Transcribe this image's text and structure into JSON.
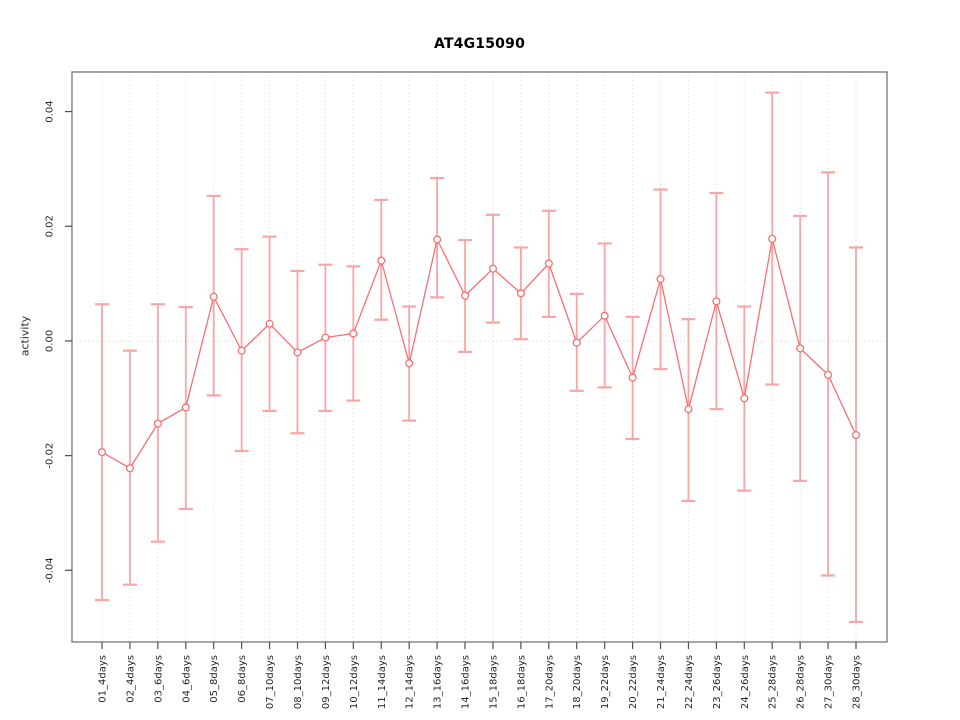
{
  "chart_data": {
    "type": "line",
    "title": "AT4G15090",
    "xlabel": "",
    "ylabel": "activity",
    "ylim": [
      -0.0525,
      0.0469
    ],
    "yticks": [
      -0.04,
      -0.02,
      0.0,
      0.02,
      0.04
    ],
    "ytick_labels": [
      "-0.04",
      "-0.02",
      "0.00",
      "0.02",
      "0.04"
    ],
    "grid": "vertical dotted gridline at each category; dotted horizontal line at y=0",
    "legend": "none",
    "categories": [
      "01_4days",
      "02_4days",
      "03_6days",
      "04_6days",
      "05_8days",
      "06_8days",
      "07_10days",
      "08_10days",
      "09_12days",
      "10_12days",
      "11_14days",
      "12_14days",
      "13_16days",
      "14_16days",
      "15_18days",
      "16_18days",
      "17_20days",
      "18_20days",
      "19_22days",
      "20_22days",
      "21_24days",
      "22_24days",
      "23_26days",
      "24_26days",
      "25_28days",
      "26_28days",
      "27_30days",
      "28_30days"
    ],
    "series": [
      {
        "name": "activity",
        "marker": "open-circle",
        "values": [
          -0.0194,
          -0.0222,
          -0.0144,
          -0.0116,
          0.0077,
          -0.0017,
          0.003,
          -0.002,
          0.0006,
          0.0013,
          0.014,
          -0.0039,
          0.0177,
          0.0079,
          0.0126,
          0.0083,
          0.0135,
          -0.0003,
          0.0044,
          -0.0064,
          0.0108,
          -0.0119,
          0.0069,
          -0.01,
          0.0178,
          -0.0013,
          -0.0059,
          -0.0164
        ],
        "upper": [
          0.0064,
          -0.0017,
          0.0064,
          0.0059,
          0.0253,
          0.016,
          0.0182,
          0.0122,
          0.0133,
          0.013,
          0.0246,
          0.006,
          0.0284,
          0.0176,
          0.022,
          0.0163,
          0.0227,
          0.0082,
          0.017,
          0.0042,
          0.0264,
          0.0038,
          0.0258,
          0.006,
          0.0433,
          0.0218,
          0.0294,
          0.0163
        ],
        "lower": [
          -0.0452,
          -0.0425,
          -0.035,
          -0.0293,
          -0.0095,
          -0.0192,
          -0.0122,
          -0.0161,
          -0.0122,
          -0.0104,
          0.0037,
          -0.0139,
          0.0076,
          -0.0019,
          0.0032,
          0.0003,
          0.0042,
          -0.0087,
          -0.0081,
          -0.0171,
          -0.0049,
          -0.0279,
          -0.0119,
          -0.0261,
          -0.0076,
          -0.0244,
          -0.0409,
          -0.049
        ]
      }
    ],
    "colors": {
      "line": "#f87070",
      "errorbar": "#f8a5a5",
      "marker_fill": "#ffffff",
      "grid": "#dadada",
      "box": "#7f7f7f",
      "tick": "#4d4d4d",
      "tick_label": "#262626",
      "title": "#000000",
      "background": "#ffffff"
    }
  }
}
